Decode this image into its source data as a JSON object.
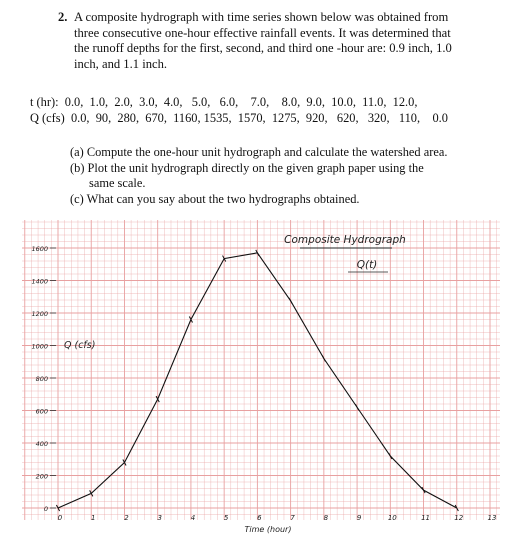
{
  "problem": {
    "number": "2.",
    "lines": [
      "A composite hydrograph with time series shown below was obtained from",
      "three consecutive one-hour effective rainfall events. It was determined that",
      "the runoff depths for the first, second, and third one -hour are: 0.9 inch, 1.0",
      "inch, and 1.1 inch."
    ]
  },
  "table": {
    "t_row": "t (hr):  0.0,  1.0,  2.0,  3.0,  4.0,   5.0,   6.0,    7.0,    8.0,  9.0,  10.0,  11.0,  12.0,",
    "q_row": "Q (cfs)  0.0,  90,  280,  670,  1160, 1535,  1570,  1275,  920,   620,   320,   110,    0.0"
  },
  "parts": [
    "(a) Compute the one-hour unit hydrograph and calculate the watershed area.",
    "(b) Plot the unit hydrograph directly on the given graph paper using the",
    "same scale.",
    "(c) What can you say about the two hydrographs obtained."
  ],
  "chart_data": {
    "type": "line",
    "title": "Composite Hydrograph",
    "series": [
      {
        "name": "Q(t)",
        "x": [
          0,
          1,
          2,
          3,
          4,
          5,
          6,
          7,
          8,
          9,
          10,
          11,
          12
        ],
        "values": [
          0,
          90,
          280,
          670,
          1160,
          1535,
          1570,
          1275,
          920,
          620,
          320,
          110,
          0
        ]
      }
    ],
    "xlabel": "Time (hour)",
    "ylabel": "Q (cfs)",
    "x_ticks": [
      "0",
      "1",
      "2",
      "3",
      "4",
      "5",
      "6",
      "7",
      "8",
      "9",
      "10",
      "11",
      "12",
      "13"
    ],
    "y_ticks": [
      "0",
      "200",
      "400",
      "600",
      "800",
      "1000",
      "1200",
      "1400",
      "1600"
    ],
    "xlim": [
      0,
      13
    ],
    "ylim": [
      0,
      1600
    ],
    "grid": true,
    "grid_color": "#e8a0a0",
    "line_color": "#111111"
  }
}
